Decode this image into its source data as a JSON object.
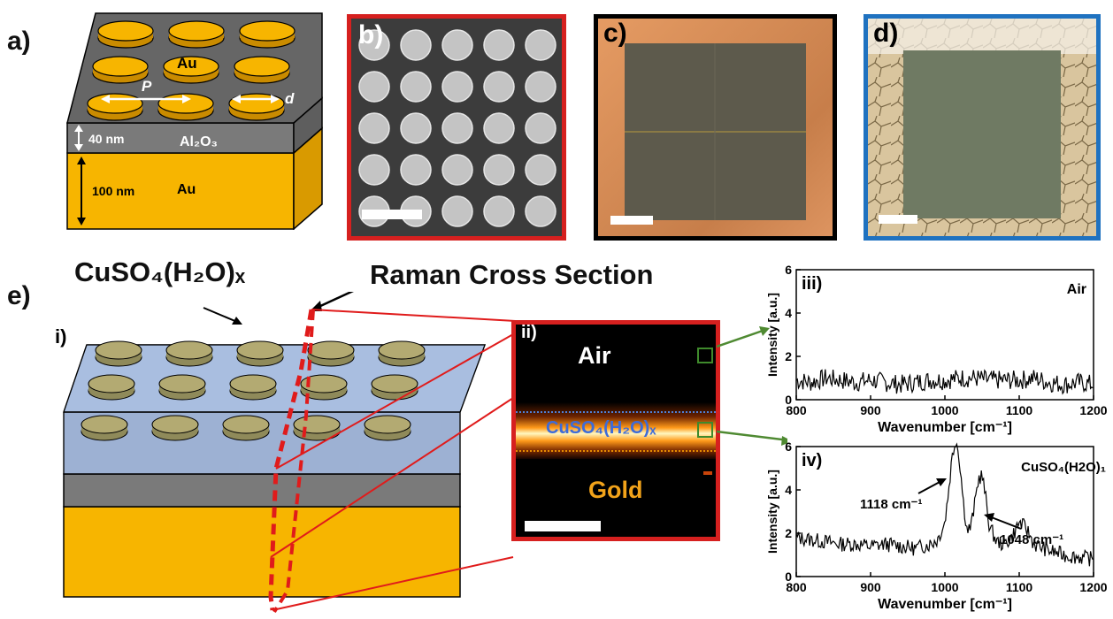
{
  "panels": {
    "a": {
      "label": "a)",
      "disk_label": "Au",
      "period_label": "P",
      "diameter_label": "d",
      "spacer_thickness": "40 nm",
      "spacer_material": "Al₂O₃",
      "mirror_thickness": "100 nm",
      "mirror_material": "Au"
    },
    "b": {
      "label": "b)",
      "frame_color": "#d6201f"
    },
    "c": {
      "label": "c)",
      "frame_color": "#000000"
    },
    "d": {
      "label": "d)",
      "frame_color": "#1f72c0"
    },
    "e": {
      "label": "e)",
      "coating_formula": "CuSO₄(H₂O)ₓ",
      "cross_section_title": "Raman Cross Section",
      "sub_i": "i)",
      "sub_ii": "ii)",
      "map_air": "Air",
      "map_layer": "CuSO₄(H₂O)ₓ",
      "map_gold": "Gold"
    }
  },
  "chart_data": [
    {
      "type": "line",
      "panel": "iii)",
      "annotation": "Air",
      "xlabel": "Wavenumber [cm⁻¹]",
      "ylabel": "Intensity [a.u.]",
      "xlim": [
        800,
        1200
      ],
      "ylim": [
        0,
        6
      ],
      "xticks": [
        800,
        900,
        1000,
        1100,
        1200
      ],
      "yticks": [
        0,
        2,
        4,
        6
      ],
      "series": [
        {
          "x": [
            800,
            820,
            840,
            860,
            880,
            900,
            920,
            940,
            960,
            980,
            1000,
            1020,
            1040,
            1060,
            1080,
            1100,
            1120,
            1140,
            1160,
            1180,
            1200
          ],
          "values": [
            0.9,
            0.8,
            1.0,
            0.9,
            0.8,
            0.9,
            0.8,
            0.7,
            0.8,
            0.9,
            0.9,
            1.0,
            1.0,
            0.9,
            0.9,
            0.9,
            1.0,
            0.8,
            0.7,
            0.8,
            0.7
          ]
        }
      ]
    },
    {
      "type": "line",
      "panel": "iv)",
      "annotation": "CuSO₄(H2O)₁",
      "xlabel": "Wavenumber [cm⁻¹]",
      "ylabel": "Intensity [a.u.]",
      "xlim": [
        800,
        1200
      ],
      "ylim": [
        0,
        6
      ],
      "xticks": [
        800,
        900,
        1000,
        1100,
        1200
      ],
      "yticks": [
        0,
        2,
        4,
        6
      ],
      "peak_labels": [
        "1118 cm⁻¹",
        "1048 cm⁻¹"
      ],
      "series": [
        {
          "x": [
            800,
            820,
            840,
            860,
            880,
            900,
            920,
            940,
            960,
            980,
            990,
            1000,
            1005,
            1010,
            1015,
            1020,
            1025,
            1030,
            1035,
            1040,
            1045,
            1050,
            1055,
            1060,
            1070,
            1080,
            1090,
            1100,
            1110,
            1120,
            1140,
            1160,
            1180,
            1200
          ],
          "values": [
            1.8,
            1.7,
            1.6,
            1.5,
            1.5,
            1.4,
            1.5,
            1.4,
            1.3,
            1.5,
            1.7,
            2.5,
            4.0,
            5.6,
            6.4,
            5.3,
            3.4,
            2.1,
            2.3,
            3.3,
            4.5,
            4.7,
            3.6,
            2.3,
            1.6,
            1.5,
            1.8,
            2.5,
            2.2,
            1.5,
            1.2,
            1.0,
            0.9,
            0.8
          ]
        }
      ]
    }
  ]
}
